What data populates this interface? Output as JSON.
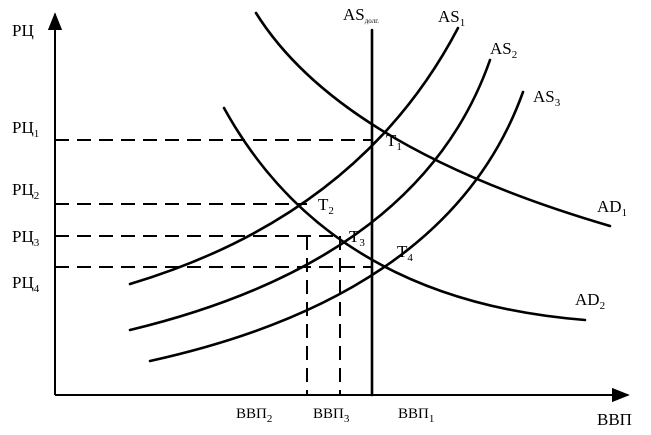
{
  "axes": {
    "y_label": "РЦ",
    "x_label": "ВВП"
  },
  "curves": {
    "as_long": {
      "main": "AS",
      "sub": "долг."
    },
    "as1": {
      "main": "AS",
      "sub": "1"
    },
    "as2": {
      "main": "AS",
      "sub": "2"
    },
    "as3": {
      "main": "AS",
      "sub": "3"
    },
    "ad1": {
      "main": "AD",
      "sub": "1"
    },
    "ad2": {
      "main": "AD",
      "sub": "2"
    }
  },
  "points": {
    "t1": {
      "main": "T",
      "sub": "1"
    },
    "t2": {
      "main": "T",
      "sub": "2"
    },
    "t3": {
      "main": "T",
      "sub": "3"
    },
    "t4": {
      "main": "T",
      "sub": "4"
    }
  },
  "price_levels": [
    {
      "main": "РЦ",
      "sub": "1"
    },
    {
      "main": "РЦ",
      "sub": "2"
    },
    {
      "main": "РЦ",
      "sub": "3"
    },
    {
      "main": "РЦ",
      "sub": "4"
    }
  ],
  "gdp_levels": [
    {
      "main": "ВВП",
      "sub": "2"
    },
    {
      "main": "ВВП",
      "sub": "3"
    },
    {
      "main": "ВВП",
      "sub": "1"
    }
  ],
  "colors": {
    "line": "#000000",
    "background": "#ffffff"
  }
}
